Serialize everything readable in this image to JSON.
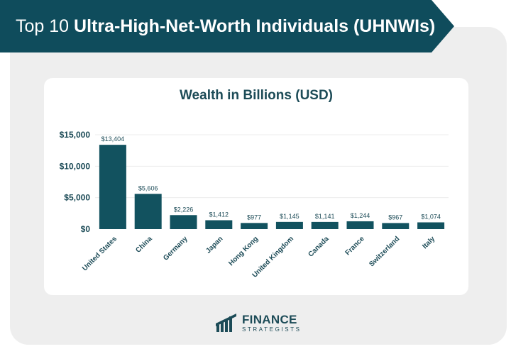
{
  "banner": {
    "title_prefix": "Top 10 ",
    "title_bold": "Ultra-High-Net-Worth Individuals (UHNWIs)"
  },
  "colors": {
    "banner": "#0f4c5c",
    "bar": "#12525f",
    "text": "#1c4b57",
    "background": "#eeeeee",
    "card": "#ffffff"
  },
  "chart_data": {
    "type": "bar",
    "title": "Wealth in Billions (USD)",
    "xlabel": "",
    "ylabel": "",
    "categories": [
      "United States",
      "China",
      "Germany",
      "Japan",
      "Hong Kong",
      "United Kingdom",
      "Canada",
      "France",
      "Switzerland",
      "Italy"
    ],
    "values": [
      13404,
      5606,
      2226,
      1412,
      977,
      1145,
      1141,
      1244,
      967,
      1074
    ],
    "data_labels": [
      "$13,404",
      "$5,606",
      "$2,226",
      "$1,412",
      "$977",
      "$1,145",
      "$1,141",
      "$1,244",
      "$967",
      "$1,074"
    ],
    "ylim": [
      0,
      15000
    ],
    "yticks": [
      0,
      5000,
      10000,
      15000
    ],
    "ytick_labels": [
      "$0",
      "$5,000",
      "$10,000",
      "$15,000"
    ],
    "grid": true
  },
  "logo": {
    "icon": "finance-strategists-logo-icon",
    "name": "FINANCE",
    "tagline": "STRATEGISTS"
  }
}
